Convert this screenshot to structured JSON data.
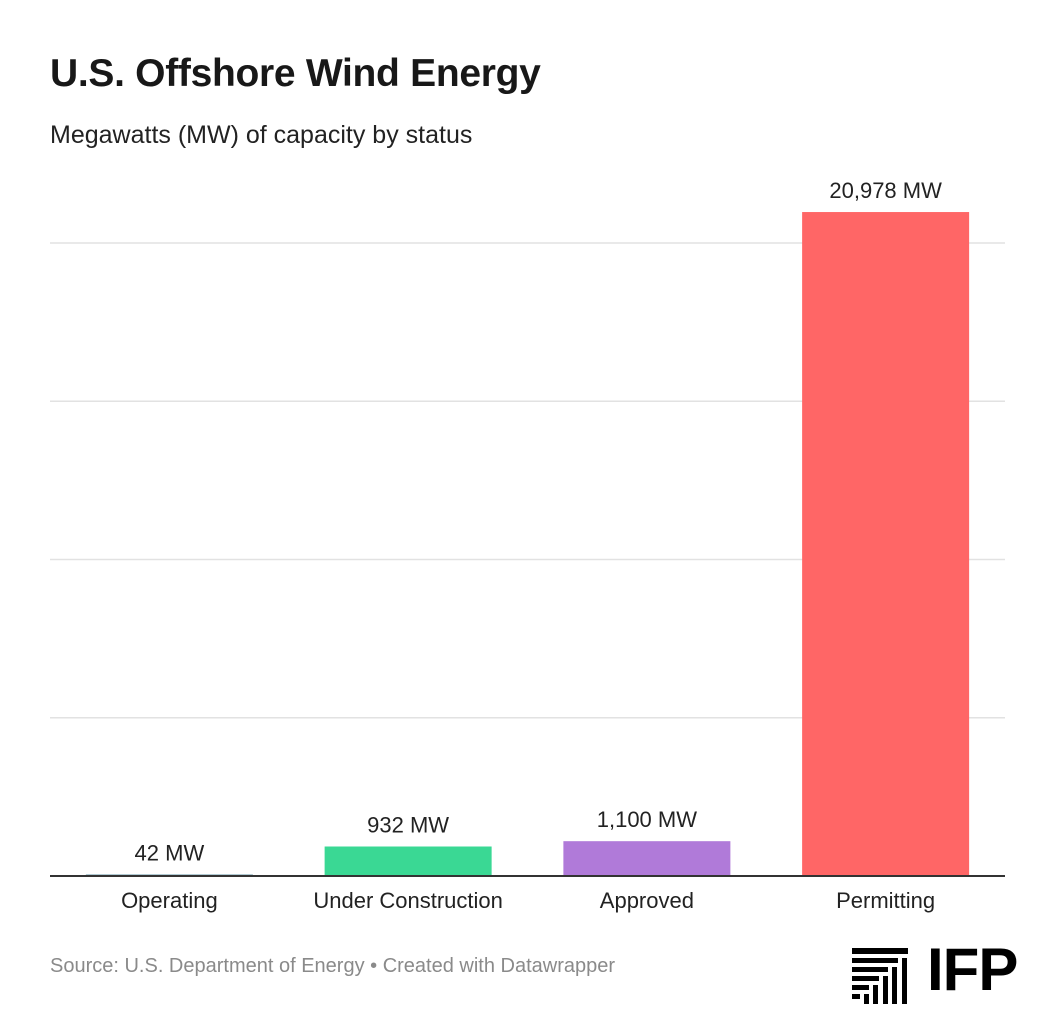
{
  "header": {
    "title": "U.S. Offshore Wind Energy",
    "subtitle": "Megawatts (MW) of capacity by status"
  },
  "footer": {
    "source": "Source: U.S. Department of Energy • Created with Datawrapper",
    "logo_text": "IFP"
  },
  "chart_data": {
    "type": "bar",
    "title": "U.S. Offshore Wind Energy",
    "subtitle": "Megawatts (MW) of capacity by status",
    "categories": [
      "Operating",
      "Under Construction",
      "Approved",
      "Permitting"
    ],
    "values": [
      42,
      932,
      1100,
      20978
    ],
    "value_labels": [
      "42 MW",
      "932 MW",
      "1,100 MW",
      "20,978 MW"
    ],
    "colors": [
      "#15607a",
      "#3ad894",
      "#b07ad9",
      "#ff6666"
    ],
    "ylim": [
      0,
      20000
    ],
    "gridlines": [
      5000,
      10000,
      15000,
      20000
    ],
    "grid": true,
    "axis_line_color": "#333333",
    "grid_color": "#e2e2e2"
  }
}
